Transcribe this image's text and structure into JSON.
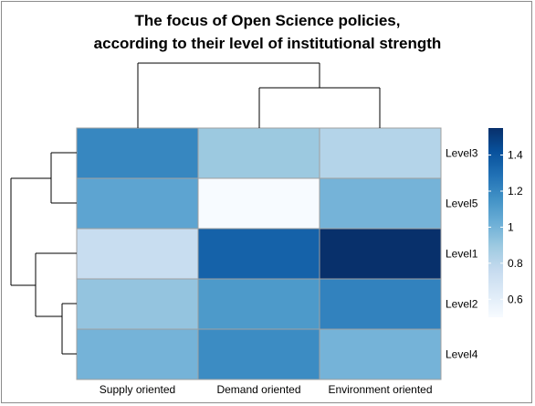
{
  "chart_data": {
    "type": "heatmap",
    "title_lines": [
      "The focus of Open Science policies,",
      "according to their level of institutional strength"
    ],
    "columns": [
      "Supply oriented",
      "Demand oriented",
      "Environment oriented"
    ],
    "rows": [
      "Level3",
      "Level5",
      "Level1",
      "Level2",
      "Level4"
    ],
    "values": [
      [
        1.2,
        0.9,
        0.82
      ],
      [
        1.07,
        0.5,
        1.0
      ],
      [
        0.75,
        1.35,
        1.55
      ],
      [
        0.92,
        1.12,
        1.22
      ],
      [
        1.0,
        1.18,
        1.0
      ]
    ],
    "colorbar": {
      "ticks": [
        0.6,
        0.8,
        1,
        1.2,
        1.4
      ],
      "tick_labels": [
        "0.6",
        "0.8",
        "1",
        "1.2",
        "1.4"
      ],
      "min": 0.5,
      "max": 1.55,
      "colors": [
        "#f7fbff",
        "#deebf7",
        "#c6dbef",
        "#9ecae1",
        "#6baed6",
        "#4292c6",
        "#2171b5",
        "#08519c",
        "#08306b"
      ]
    },
    "cell_border_color": "#a0a0a0",
    "dendrogram_color": "#000000"
  }
}
